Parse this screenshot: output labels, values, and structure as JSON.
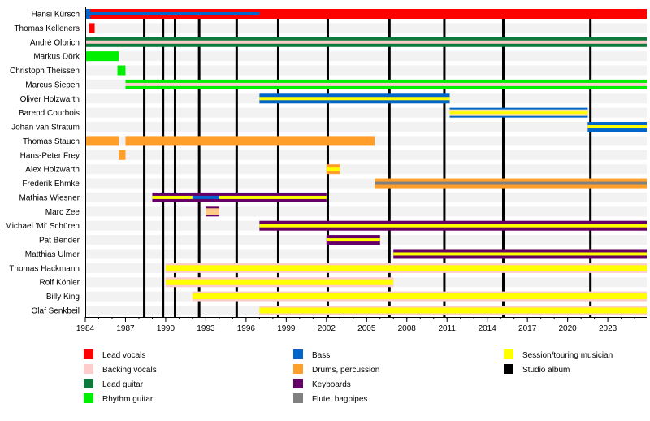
{
  "chart_data": {
    "type": "timeline",
    "xlim": [
      1984,
      2026
    ],
    "x_ticks": [
      1984,
      1987,
      1990,
      1993,
      1996,
      1999,
      2002,
      2005,
      2008,
      2011,
      2014,
      2017,
      2020,
      2023
    ],
    "minor_tick_step": 1,
    "colors": {
      "lead_vocals": "#ff0000",
      "backing_vocals": "#ffcccc",
      "lead_guitar": "#0b7a3a",
      "rhythm_guitar": "#00ee00",
      "bass": "#0066cc",
      "drums": "#ff9f2a",
      "keyboards": "#660066",
      "flute": "#808080",
      "session": "#ffff00",
      "album": "#000000"
    },
    "legend": [
      {
        "key": "lead_vocals",
        "label": "Lead vocals"
      },
      {
        "key": "backing_vocals",
        "label": "Backing vocals"
      },
      {
        "key": "lead_guitar",
        "label": "Lead guitar"
      },
      {
        "key": "rhythm_guitar",
        "label": "Rhythm guitar"
      },
      {
        "key": "bass",
        "label": "Bass"
      },
      {
        "key": "drums",
        "label": "Drums, percussion"
      },
      {
        "key": "keyboards",
        "label": "Keyboards"
      },
      {
        "key": "flute",
        "label": "Flute, bagpipes"
      },
      {
        "key": "session",
        "label": "Session/touring musician"
      },
      {
        "key": "album",
        "label": "Studio album"
      }
    ],
    "studio_albums": [
      1988.4,
      1989.8,
      1990.7,
      1992.5,
      1995.3,
      1998.4,
      2002.1,
      2006.7,
      2010.8,
      2015.2,
      2021.7
    ],
    "members": [
      {
        "name": "Hansi Kürsch",
        "bars": [
          {
            "start": 1984,
            "end": 2026,
            "role": "lead_vocals",
            "inner": "bass",
            "inner_end": 1997
          }
        ]
      },
      {
        "name": "Thomas Kelleners",
        "bars": [
          {
            "start": 1984.3,
            "end": 1984.7,
            "role": "lead_vocals"
          }
        ]
      },
      {
        "name": "André Olbrich",
        "bars": [
          {
            "start": 1984,
            "end": 2026,
            "role": "lead_guitar",
            "inner": "backing_vocals"
          }
        ]
      },
      {
        "name": "Markus Dörk",
        "bars": [
          {
            "start": 1984,
            "end": 1986.5,
            "role": "rhythm_guitar"
          }
        ]
      },
      {
        "name": "Christoph Theissen",
        "bars": [
          {
            "start": 1986.4,
            "end": 1987,
            "role": "rhythm_guitar"
          }
        ]
      },
      {
        "name": "Marcus Siepen",
        "bars": [
          {
            "start": 1987,
            "end": 2026,
            "role": "rhythm_guitar",
            "inner": "backing_vocals"
          }
        ]
      },
      {
        "name": "Oliver Holzwarth",
        "bars": [
          {
            "start": 1997,
            "end": 2011.2,
            "role": "bass",
            "inner": "session"
          }
        ]
      },
      {
        "name": "Barend Courbois",
        "bars": [
          {
            "start": 2011.2,
            "end": 2021.5,
            "role": "bass",
            "inner": "session",
            "backing": true
          }
        ]
      },
      {
        "name": "Johan van Stratum",
        "bars": [
          {
            "start": 2021.5,
            "end": 2026,
            "role": "bass",
            "inner": "session"
          }
        ]
      },
      {
        "name": "Thomas Stauch",
        "bars": [
          {
            "start": 1984,
            "end": 1986.5,
            "role": "drums"
          },
          {
            "start": 1987,
            "end": 2005.6,
            "role": "drums"
          }
        ]
      },
      {
        "name": "Hans-Peter Frey",
        "bars": [
          {
            "start": 1986.5,
            "end": 1987,
            "role": "drums"
          }
        ]
      },
      {
        "name": "Alex Holzwarth",
        "bars": [
          {
            "start": 2002,
            "end": 2003,
            "role": "drums",
            "inner": "session"
          }
        ]
      },
      {
        "name": "Frederik Ehmke",
        "bars": [
          {
            "start": 2005.6,
            "end": 2026,
            "role": "drums",
            "inner": "flute"
          }
        ]
      },
      {
        "name": "Mathias Wiesner",
        "bars": [
          {
            "start": 1989,
            "end": 2002,
            "role": "keyboards",
            "inner": "session"
          },
          {
            "start": 1992,
            "end": 1994,
            "role": "keyboards",
            "inner": "bass"
          }
        ]
      },
      {
        "name": "Marc Zee",
        "bars": [
          {
            "start": 1993,
            "end": 1994,
            "role": "keyboards",
            "inner": "backing_vocals_session"
          }
        ]
      },
      {
        "name": "Michael 'Mi' Schüren",
        "bars": [
          {
            "start": 1997,
            "end": 2026,
            "role": "keyboards",
            "inner": "session"
          }
        ]
      },
      {
        "name": "Pat Bender",
        "bars": [
          {
            "start": 2002,
            "end": 2006,
            "role": "keyboards",
            "inner": "session"
          }
        ]
      },
      {
        "name": "Matthias Ulmer",
        "bars": [
          {
            "start": 2007,
            "end": 2026,
            "role": "keyboards",
            "inner": "session"
          }
        ]
      },
      {
        "name": "Thomas Hackmann",
        "bars": [
          {
            "start": 1990,
            "end": 2026,
            "role": "backing_vocals",
            "inner": "session"
          }
        ]
      },
      {
        "name": "Rolf Köhler",
        "bars": [
          {
            "start": 1990,
            "end": 2007,
            "role": "backing_vocals",
            "inner": "session"
          }
        ]
      },
      {
        "name": "Billy King",
        "bars": [
          {
            "start": 1992,
            "end": 2026,
            "role": "backing_vocals",
            "inner": "session"
          }
        ]
      },
      {
        "name": "Olaf Senkbeil",
        "bars": [
          {
            "start": 1997,
            "end": 2026,
            "role": "backing_vocals",
            "inner": "session"
          }
        ]
      }
    ]
  }
}
